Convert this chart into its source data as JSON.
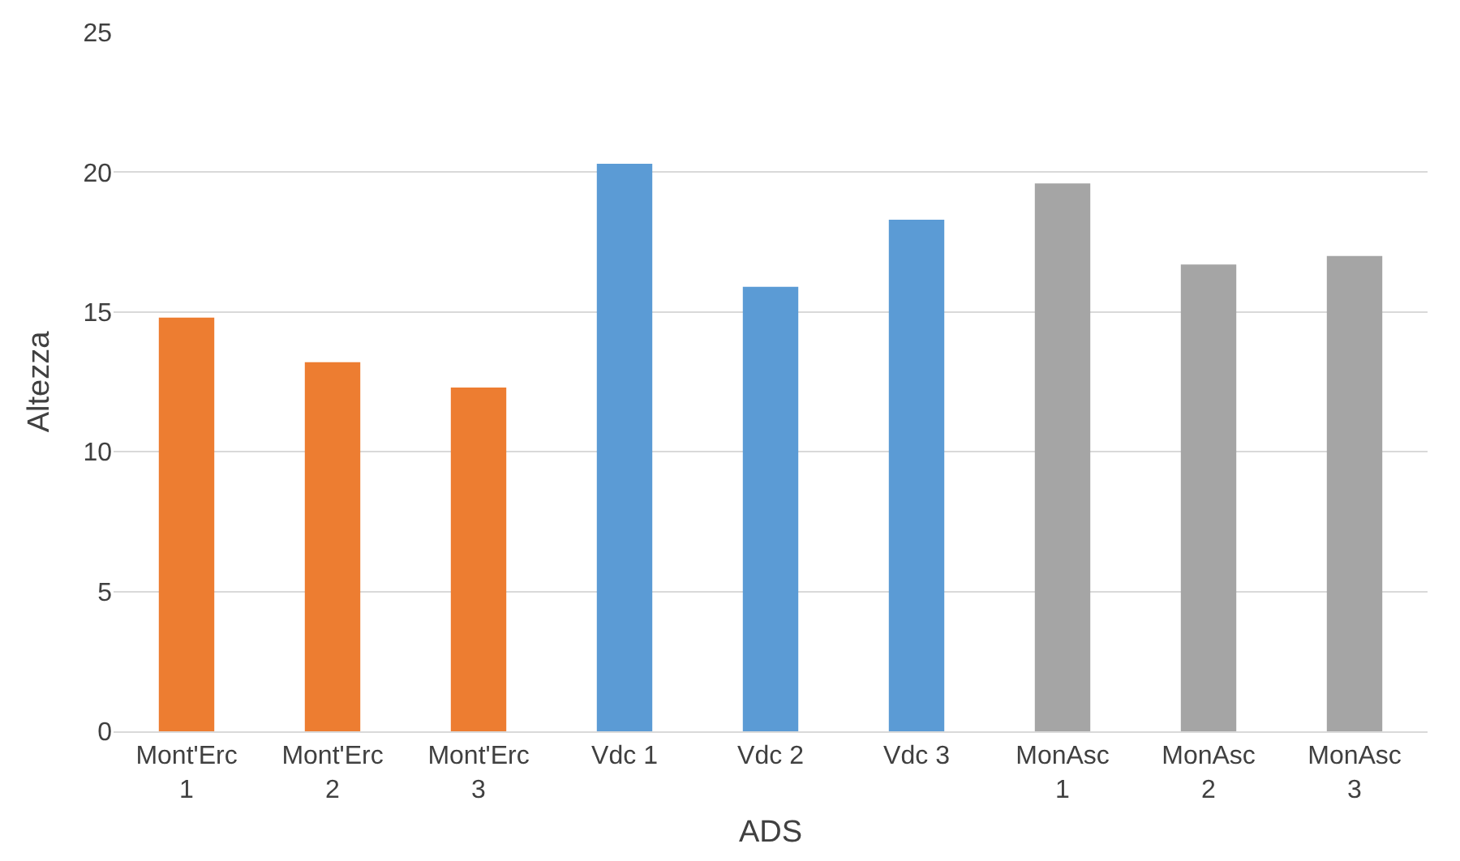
{
  "chart_data": {
    "type": "bar",
    "xlabel": "ADS",
    "ylabel": "Altezza",
    "categories": [
      "Mont'Erc 1",
      "Mont'Erc 2",
      "Mont'Erc 3",
      "Vdc 1",
      "Vdc 2",
      "Vdc 3",
      "MonAsc 1",
      "MonAsc 2",
      "MonAsc 3"
    ],
    "values": [
      14.8,
      13.2,
      12.3,
      20.3,
      15.9,
      18.3,
      19.6,
      16.7,
      17.0
    ],
    "colors": [
      "#ed7d31",
      "#ed7d31",
      "#ed7d31",
      "#5b9bd5",
      "#5b9bd5",
      "#5b9bd5",
      "#a5a5a5",
      "#a5a5a5",
      "#a5a5a5"
    ],
    "ylim": [
      0,
      25
    ],
    "yticks": [
      0,
      5,
      10,
      15,
      20,
      25
    ],
    "grid": "y",
    "legend": false
  }
}
